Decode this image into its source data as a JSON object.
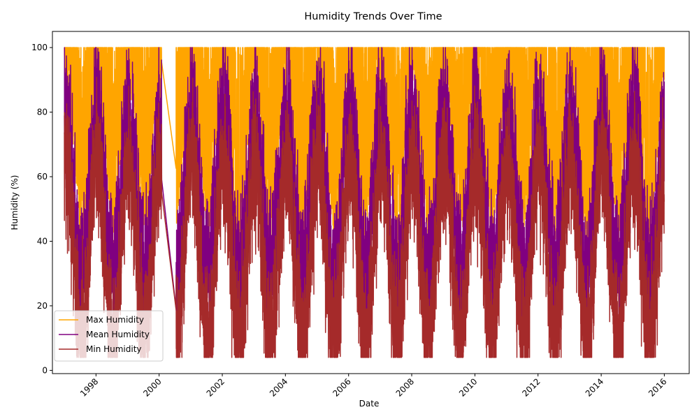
{
  "chart_data": {
    "type": "line",
    "title": "Humidity Trends Over Time",
    "xlabel": "Date",
    "ylabel": "Humidity (%)",
    "xlim": [
      "1996-08-15",
      "2016-10-15"
    ],
    "ylim": [
      -1,
      105
    ],
    "grid": false,
    "legend_position": "lower-left",
    "x_ticks": [
      "1998",
      "2000",
      "2002",
      "2004",
      "2006",
      "2008",
      "2010",
      "2012",
      "2014",
      "2016"
    ],
    "y_ticks": [
      "0",
      "20",
      "40",
      "60",
      "80",
      "100"
    ],
    "date_range": [
      "1996-12-31",
      "2015-12-31"
    ],
    "gap": [
      "2000-01-31",
      "2000-07-15"
    ],
    "sampling": "daily",
    "series": [
      {
        "name": "Max Humidity",
        "color": "#FFA500",
        "typical_range": [
          40,
          100
        ],
        "max": 100,
        "seasonal_envelope": {
          "dry_season_low": 45,
          "wet_season_high": 100
        }
      },
      {
        "name": "Mean Humidity",
        "color": "#800080",
        "typical_range": [
          20,
          95
        ],
        "max": 100,
        "seasonal_envelope": {
          "dry_season_low": 20,
          "wet_season_high": 96
        }
      },
      {
        "name": "Min Humidity",
        "color": "#A52A2A",
        "typical_range": [
          6,
          90
        ],
        "min": 4,
        "seasonal_envelope": {
          "dry_season_low": 5,
          "wet_season_high": 90
        }
      }
    ]
  }
}
